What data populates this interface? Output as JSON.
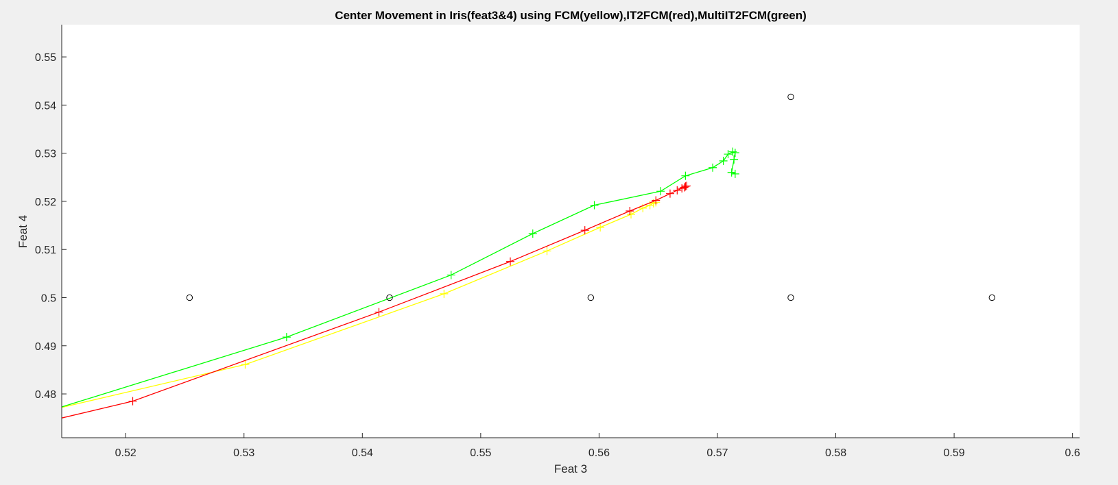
{
  "chart_data": {
    "type": "line",
    "title": "Center Movement in Iris(feat3&4) using FCM(yellow),IT2FCM(red),MultiIT2FCM(green)",
    "xlabel": "Feat 3",
    "ylabel": "Feat 4",
    "xlim": [
      0.5146,
      0.6006
    ],
    "ylim": [
      0.4709,
      0.5567
    ],
    "xticks": [
      0.52,
      0.53,
      0.54,
      0.55,
      0.56,
      0.57,
      0.58,
      0.59,
      0.6
    ],
    "xtick_labels": [
      "0.52",
      "0.53",
      "0.54",
      "0.55",
      "0.56",
      "0.57",
      "0.58",
      "0.59",
      "0.6"
    ],
    "yticks": [
      0.48,
      0.49,
      0.5,
      0.51,
      0.52,
      0.53,
      0.54,
      0.55
    ],
    "ytick_labels": [
      "0.48",
      "0.49",
      "0.5",
      "0.51",
      "0.52",
      "0.53",
      "0.54",
      "0.55"
    ],
    "grid": false,
    "series": [
      {
        "color": "#ffff00",
        "marker": "+",
        "x": [
          0.5146,
          0.5301,
          0.5469,
          0.5556,
          0.5601,
          0.5627,
          0.5637,
          0.5643,
          0.5646,
          0.5648
        ],
        "y": [
          0.4772,
          0.4861,
          0.5008,
          0.5097,
          0.5146,
          0.5173,
          0.5186,
          0.5192,
          0.5196,
          0.5198
        ],
        "markers_from_index": 1
      },
      {
        "color": "#ff0000",
        "marker": "+",
        "x": [
          0.5146,
          0.5206,
          0.5414,
          0.5525,
          0.5588,
          0.5626,
          0.5648,
          0.566,
          0.5666,
          0.567,
          0.5672,
          0.5673,
          0.5674
        ],
        "y": [
          0.475,
          0.4785,
          0.497,
          0.5075,
          0.514,
          0.518,
          0.5202,
          0.5216,
          0.5223,
          0.5227,
          0.5229,
          0.5231,
          0.5232
        ],
        "markers_from_index": 1
      },
      {
        "color": "#00ff00",
        "marker": "+",
        "x": [
          0.5146,
          0.5336,
          0.5475,
          0.5544,
          0.5596,
          0.5652,
          0.5673,
          0.5696,
          0.5705,
          0.5709,
          0.5713,
          0.5715,
          0.5714,
          0.5712,
          0.5715
        ],
        "y": [
          0.4773,
          0.4918,
          0.5047,
          0.5133,
          0.5192,
          0.5221,
          0.5253,
          0.527,
          0.5284,
          0.5298,
          0.5303,
          0.5301,
          0.5287,
          0.526,
          0.5257
        ],
        "markers_from_index": 1
      }
    ],
    "circles": {
      "color": "#000000",
      "marker": "o",
      "x": [
        0.5254,
        0.5423,
        0.5593,
        0.5762,
        0.5932,
        0.5762
      ],
      "y": [
        0.5,
        0.5,
        0.5,
        0.5,
        0.5,
        0.5417
      ]
    }
  }
}
